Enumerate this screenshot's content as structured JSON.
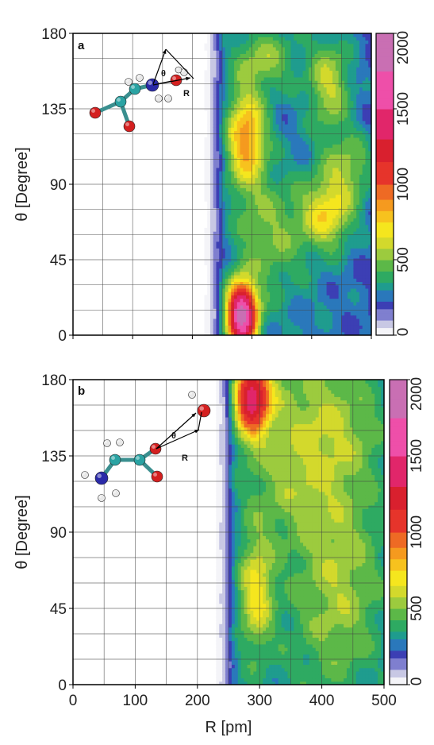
{
  "figure": {
    "x_axis_label": "R [pm]",
    "y_axis_label": "θ [Degree]"
  },
  "chart_data": [
    {
      "type": "heatmap",
      "panel_label": "a",
      "xlabel": "R [pm]",
      "ylabel": "θ [Degree]",
      "xlim": [
        0,
        500
      ],
      "ylim": [
        0,
        180
      ],
      "x_ticks": [
        "0",
        "100",
        "200",
        "300",
        "400",
        "500"
      ],
      "y_ticks": [
        "0",
        "45",
        "90",
        "135",
        "180"
      ],
      "x_grid_step": 50,
      "y_grid_step": 15,
      "colorbar": {
        "range": [
          0,
          2000
        ],
        "ticks": [
          "0",
          "500",
          "1000",
          "1500",
          "2000"
        ]
      },
      "inset_labels": [
        "θ",
        "R"
      ],
      "density_onset_R": 240,
      "blobs": [
        {
          "R": 283,
          "theta": 12,
          "sR": 17,
          "sT": 13,
          "amp": 1560
        },
        {
          "R": 290,
          "theta": 118,
          "sR": 22,
          "sT": 20,
          "amp": 620
        },
        {
          "R": 320,
          "theta": 165,
          "sR": 35,
          "sT": 12,
          "amp": 260
        },
        {
          "R": 425,
          "theta": 72,
          "sR": 30,
          "sT": 14,
          "amp": 430
        },
        {
          "R": 430,
          "theta": 150,
          "sR": 25,
          "sT": 18,
          "amp": 330
        },
        {
          "R": 460,
          "theta": 100,
          "sR": 30,
          "sT": 15,
          "amp": 280
        },
        {
          "R": 330,
          "theta": 60,
          "sR": 40,
          "sT": 25,
          "amp": 230
        }
      ],
      "background_level": 270
    },
    {
      "type": "heatmap",
      "panel_label": "b",
      "xlabel": "R [pm]",
      "ylabel": "θ [Degree]",
      "xlim": [
        0,
        500
      ],
      "ylim": [
        0,
        180
      ],
      "x_ticks": [
        "0",
        "100",
        "200",
        "300",
        "400",
        "500"
      ],
      "y_ticks": [
        "0",
        "45",
        "90",
        "135",
        "180"
      ],
      "x_grid_step": 50,
      "y_grid_step": 15,
      "colorbar": {
        "range": [
          0,
          2000
        ],
        "ticks": [
          "0",
          "500",
          "1000",
          "1500",
          "2000"
        ]
      },
      "inset_labels": [
        "θ",
        "R"
      ],
      "density_onset_R": 250,
      "blobs": [
        {
          "R": 288,
          "theta": 170,
          "sR": 20,
          "sT": 15,
          "amp": 1050
        },
        {
          "R": 295,
          "theta": 55,
          "sR": 18,
          "sT": 22,
          "amp": 380
        },
        {
          "R": 400,
          "theta": 150,
          "sR": 70,
          "sT": 30,
          "amp": 260
        },
        {
          "R": 430,
          "theta": 60,
          "sR": 50,
          "sT": 40,
          "amp": 240
        },
        {
          "R": 340,
          "theta": 110,
          "sR": 50,
          "sT": 20,
          "amp": 90
        }
      ],
      "background_level": 330
    }
  ]
}
